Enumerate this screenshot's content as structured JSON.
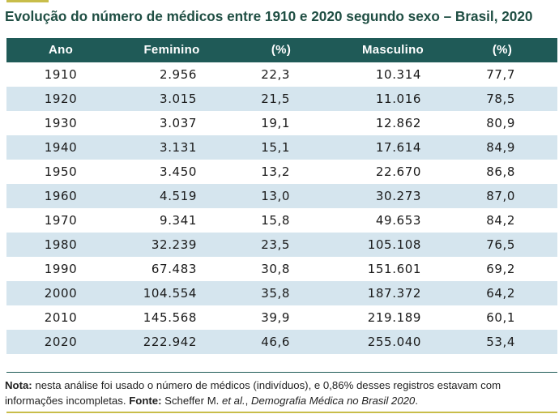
{
  "title": "Evolução do número de médicos entre 1910 e 2020 segundo sexo – Brasil, 2020",
  "table": {
    "headers": [
      "Ano",
      "Feminino",
      "(%)",
      "Masculino",
      "(%)"
    ],
    "rows": [
      [
        "1910",
        "2.956",
        "22,3",
        "10.314",
        "77,7"
      ],
      [
        "1920",
        "3.015",
        "21,5",
        "11.016",
        "78,5"
      ],
      [
        "1930",
        "3.037",
        "19,1",
        "12.862",
        "80,9"
      ],
      [
        "1940",
        "3.131",
        "15,1",
        "17.614",
        "84,9"
      ],
      [
        "1950",
        "3.450",
        "13,2",
        "22.670",
        "86,8"
      ],
      [
        "1960",
        "4.519",
        "13,0",
        "30.273",
        "87,0"
      ],
      [
        "1970",
        "9.341",
        "15,8",
        "49.653",
        "84,2"
      ],
      [
        "1980",
        "32.239",
        "23,5",
        "105.108",
        "76,5"
      ],
      [
        "1990",
        "67.483",
        "30,8",
        "151.601",
        "69,2"
      ],
      [
        "2000",
        "104.554",
        "35,8",
        "187.372",
        "64,2"
      ],
      [
        "2010",
        "145.568",
        "39,9",
        "219.189",
        "60,1"
      ],
      [
        "2020",
        "222.942",
        "46,6",
        "255.040",
        "53,4"
      ]
    ]
  },
  "note": {
    "label": "Nota:",
    "text": " nesta análise foi usado o número de médicos (indivíduos), e 0,86% desses registros estavam com informações incompletas. ",
    "source_label": "Fonte:",
    "source_author": " Scheffer M. ",
    "source_etal": "et al.",
    "source_sep": ", ",
    "source_title": "Demografia Médica no Brasil 2020",
    "source_end": "."
  }
}
